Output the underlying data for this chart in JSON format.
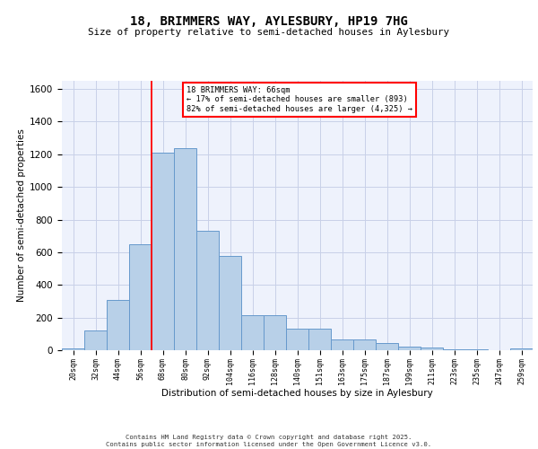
{
  "title1": "18, BRIMMERS WAY, AYLESBURY, HP19 7HG",
  "title2": "Size of property relative to semi-detached houses in Aylesbury",
  "xlabel": "Distribution of semi-detached houses by size in Aylesbury",
  "ylabel": "Number of semi-detached properties",
  "categories": [
    "20sqm",
    "32sqm",
    "44sqm",
    "56sqm",
    "68sqm",
    "80sqm",
    "92sqm",
    "104sqm",
    "116sqm",
    "128sqm",
    "140sqm",
    "151sqm",
    "163sqm",
    "175sqm",
    "187sqm",
    "199sqm",
    "211sqm",
    "223sqm",
    "235sqm",
    "247sqm",
    "259sqm"
  ],
  "values": [
    10,
    120,
    310,
    650,
    1210,
    1240,
    730,
    580,
    215,
    215,
    130,
    130,
    65,
    65,
    45,
    20,
    15,
    5,
    3,
    2,
    10
  ],
  "bar_color": "#b8d0e8",
  "bar_edge_color": "#6699cc",
  "vline_color": "red",
  "vline_pos": 3.5,
  "annotation_title": "18 BRIMMERS WAY: 66sqm",
  "annotation_line1": "← 17% of semi-detached houses are smaller (893)",
  "annotation_line2": "82% of semi-detached houses are larger (4,325) →",
  "ylim": [
    0,
    1650
  ],
  "yticks": [
    0,
    200,
    400,
    600,
    800,
    1000,
    1200,
    1400,
    1600
  ],
  "footer1": "Contains HM Land Registry data © Crown copyright and database right 2025.",
  "footer2": "Contains public sector information licensed under the Open Government Licence v3.0.",
  "bg_color": "#eef2fc",
  "grid_color": "#c8d0e8"
}
